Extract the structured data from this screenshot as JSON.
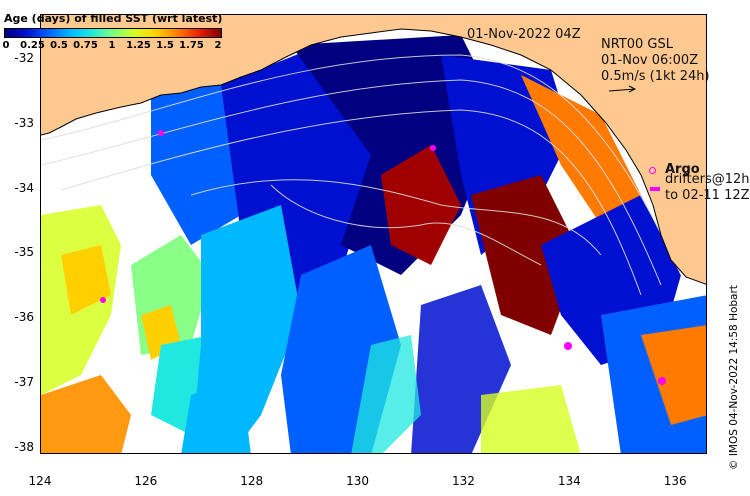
{
  "map": {
    "timestamp": "01-Nov-2022 04Z",
    "product": {
      "line1": "NRT00 GSL",
      "line2": "01-Nov 06:00Z",
      "line3": "0.5m/s (1kt 24h)"
    },
    "argo_label": "Argo",
    "drifters_line1": "drifters@12h",
    "drifters_line2": "to 02-11 12Z",
    "credit": "© IMOS 04-Nov-2022 14:58 Hobart",
    "legend": {
      "title": "Age (days) of filled SST (wrt latest)",
      "ticks": [
        "0",
        "0.25",
        "0.5",
        "0.75",
        "1",
        "1.25",
        "1.5",
        "1.75",
        "2"
      ],
      "range": [
        0,
        2
      ],
      "colors": [
        "#000080",
        "#0010d0",
        "#0060ff",
        "#00b8ff",
        "#20e8e0",
        "#7cff7a",
        "#d6ff20",
        "#ffd000",
        "#ff7a00",
        "#e82000",
        "#800000"
      ]
    },
    "colors": {
      "land": "#fec891",
      "no_data": "#ffffff",
      "argo": "#ff00ff",
      "contours": "#dcdcdc"
    },
    "axes": {
      "x_ticks": [
        "124",
        "126",
        "128",
        "130",
        "132",
        "134",
        "136"
      ],
      "y_ticks": [
        "-32",
        "-33",
        "-34",
        "-35",
        "-36",
        "-37",
        "-38"
      ],
      "lon_range": [
        124,
        136.6
      ],
      "lat_range": [
        -38.1,
        -31.3
      ]
    }
  }
}
